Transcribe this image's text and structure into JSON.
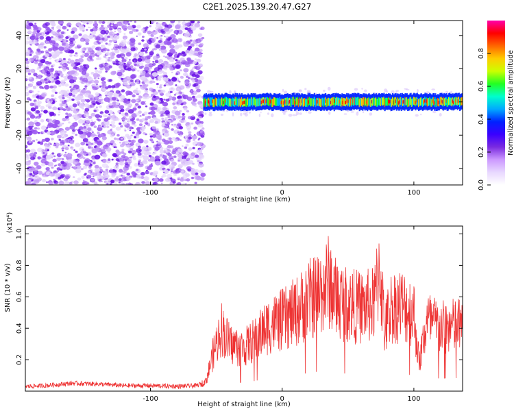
{
  "title": "C2E1.2025.139.20.47.G27",
  "colors": {
    "background": "#ffffff",
    "snr_line": "#ee3333",
    "speckle": "#7a2be0",
    "colormap": [
      "#ffffff",
      "#e8d8ff",
      "#cc99ff",
      "#7a2be0",
      "#3a00ff",
      "#0022ff",
      "#00aaff",
      "#00ffcc",
      "#22ff22",
      "#ccff00",
      "#ffcc00",
      "#ff6600",
      "#ff0000",
      "#ff00aa"
    ]
  },
  "chart_data": [
    {
      "type": "heatmap",
      "xlabel": "Height of straight line (km)",
      "ylabel": "Frequency (Hz)",
      "xlim": [
        -195,
        137
      ],
      "ylim": [
        -50,
        49
      ],
      "xticks": [
        -100,
        0,
        100
      ],
      "xtick_labels": [
        "-100",
        "0",
        "100"
      ],
      "yticks": [
        -40,
        -20,
        0,
        20,
        40
      ],
      "ytick_labels": [
        "-40",
        "-20",
        "0",
        "20",
        "40"
      ],
      "colorbar": {
        "label": "Normalized spectral amplitude",
        "range": [
          0.0,
          1.0
        ],
        "ticks": [
          0.0,
          0.2,
          0.4,
          0.6,
          0.8
        ],
        "tick_labels": [
          "0.0",
          "0.2",
          "0.4",
          "0.6",
          "0.8"
        ]
      },
      "features": {
        "noise_region_x": [
          -195,
          -60
        ],
        "signal_band_x": [
          -60,
          137
        ],
        "signal_center_frequency": 0,
        "signal_halfwidth": 3,
        "noise_level": 0.25,
        "signal_level_min": 0.5,
        "signal_level_max": 1.0
      },
      "grid": false
    },
    {
      "type": "line",
      "xlabel": "Height of straight line (km)",
      "ylabel": "SNR (10 * v/v)",
      "y_multiplier": "(x10⁴)",
      "xlim": [
        -195,
        137
      ],
      "ylim": [
        0.0,
        1.05
      ],
      "xticks": [
        -100,
        0,
        100
      ],
      "xtick_labels": [
        "-100",
        "0",
        "100"
      ],
      "yticks": [
        0.2,
        0.4,
        0.6,
        0.8,
        1.0
      ],
      "ytick_labels": [
        "0.2",
        "0.4",
        "0.6",
        "0.8",
        "1.0"
      ],
      "series": [
        {
          "x": [
            -195,
            -180,
            -160,
            -140,
            -120,
            -100,
            -80,
            -65,
            -58,
            -52,
            -46,
            -40,
            -30,
            -20,
            -10,
            0,
            10,
            20,
            30,
            36,
            40,
            50,
            60,
            70,
            74,
            78,
            82,
            90,
            100,
            104,
            110,
            120,
            137
          ],
          "y": [
            0.03,
            0.035,
            0.05,
            0.045,
            0.035,
            0.035,
            0.03,
            0.035,
            0.06,
            0.25,
            0.4,
            0.3,
            0.27,
            0.33,
            0.42,
            0.45,
            0.5,
            0.58,
            0.64,
            0.7,
            0.6,
            0.55,
            0.53,
            0.55,
            0.8,
            0.38,
            0.53,
            0.55,
            0.5,
            0.18,
            0.45,
            0.4,
            0.42
          ]
        }
      ],
      "grid": false
    }
  ]
}
